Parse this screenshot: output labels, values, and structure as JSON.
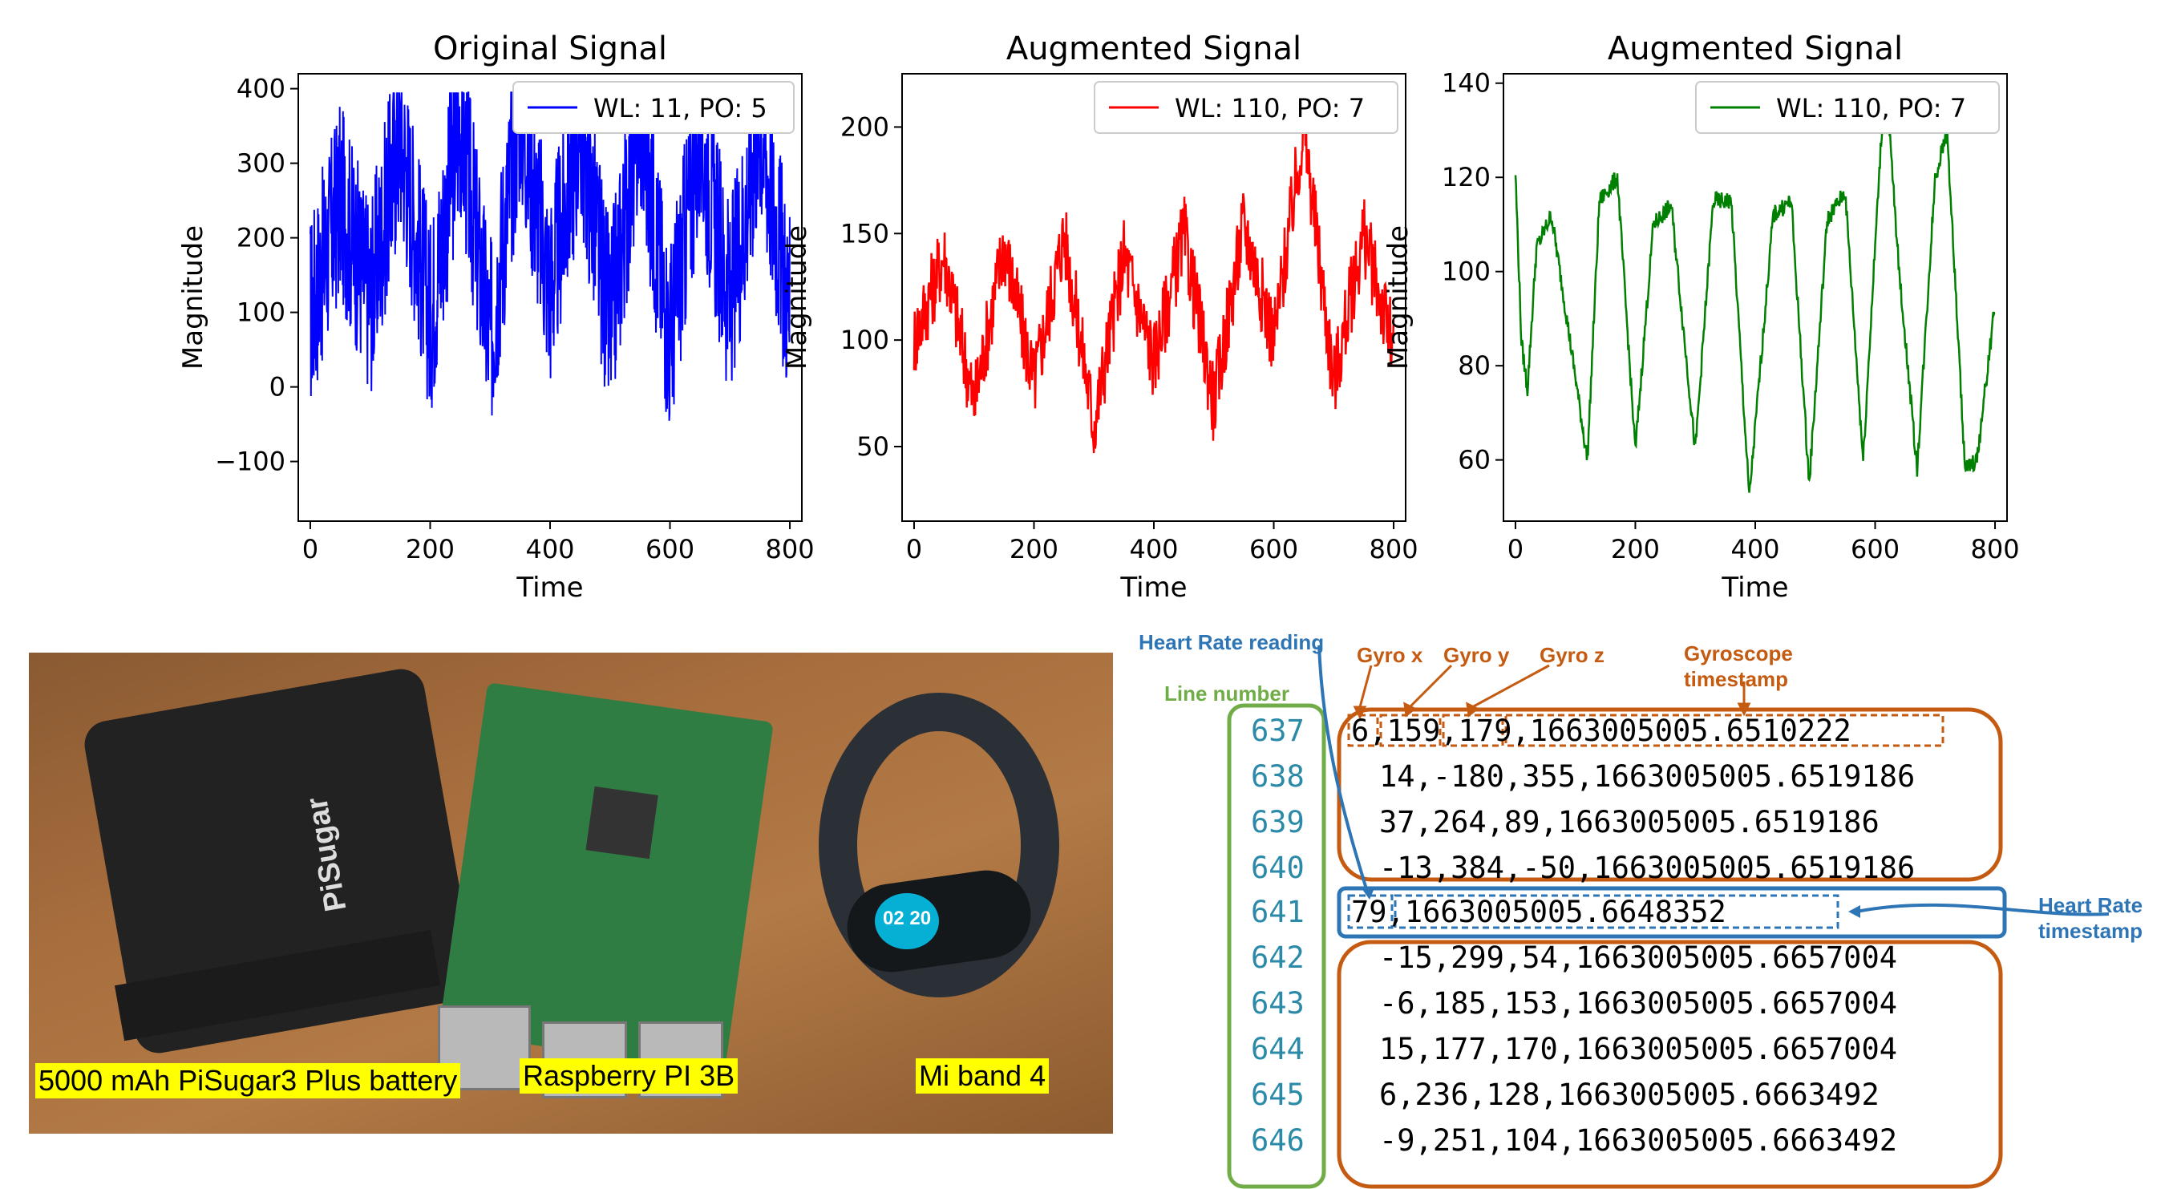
{
  "chart_data": [
    {
      "type": "line",
      "title": "Original Signal",
      "xlabel": "Time",
      "ylabel": "Magnitude",
      "xlim": [
        -20,
        820
      ],
      "ylim": [
        -180,
        420
      ],
      "xticks": [
        "0",
        "200",
        "400",
        "600",
        "800"
      ],
      "yticks": [
        "400",
        "300",
        "200",
        "100",
        "0",
        "−100"
      ],
      "legend_placement": "top-right",
      "series": [
        {
          "name": "WL: 11, PO: 5",
          "color": "#0000ff",
          "x": [
            0,
            50,
            100,
            150,
            200,
            250,
            300,
            350,
            400,
            450,
            500,
            550,
            600,
            650,
            700,
            750,
            800
          ],
          "values": [
            100,
            250,
            120,
            340,
            90,
            360,
            60,
            380,
            130,
            350,
            80,
            370,
            60,
            340,
            110,
            360,
            100
          ]
        }
      ]
    },
    {
      "type": "line",
      "title": "Augmented Signal",
      "xlabel": "Time",
      "ylabel": "Magnitude",
      "xlim": [
        -20,
        820
      ],
      "ylim": [
        15,
        225
      ],
      "xticks": [
        "0",
        "200",
        "400",
        "600",
        "800"
      ],
      "yticks": [
        "200",
        "150",
        "100",
        "50"
      ],
      "legend_placement": "top-right",
      "series": [
        {
          "name": "WL: 110, PO: 7",
          "color": "#ff0000",
          "x": [
            0,
            50,
            100,
            150,
            200,
            250,
            300,
            350,
            400,
            450,
            500,
            550,
            600,
            650,
            700,
            750,
            800
          ],
          "values": [
            100,
            140,
            70,
            145,
            80,
            150,
            60,
            140,
            90,
            150,
            70,
            155,
            100,
            200,
            80,
            150,
            95
          ]
        }
      ]
    },
    {
      "type": "line",
      "title": "Augmented Signal",
      "xlabel": "Time",
      "ylabel": "Magnitude",
      "xlim": [
        -20,
        820
      ],
      "ylim": [
        47,
        142
      ],
      "xticks": [
        "0",
        "200",
        "400",
        "600",
        "800"
      ],
      "yticks": [
        "140",
        "120",
        "100",
        "80",
        "60"
      ],
      "legend_placement": "top-right",
      "series": [
        {
          "name": "WL: 110, PO: 7",
          "color": "#008000",
          "x": [
            0,
            10,
            20,
            35,
            60,
            80,
            120,
            140,
            170,
            200,
            230,
            260,
            300,
            330,
            360,
            390,
            430,
            460,
            490,
            520,
            550,
            580,
            610,
            620,
            640,
            670,
            700,
            720,
            750,
            770,
            800
          ],
          "values": [
            121,
            85,
            75,
            105,
            112,
            95,
            60,
            115,
            120,
            62,
            110,
            114,
            62,
            115,
            115,
            52,
            112,
            115,
            55,
            111,
            117,
            60,
            128,
            137,
            100,
            58,
            120,
            130,
            58,
            60,
            93
          ]
        }
      ]
    }
  ],
  "photo": {
    "captions": {
      "battery": "5000 mAh PiSugar3 Plus battery",
      "rpi": "Raspberry PI 3B",
      "band": "Mi band 4"
    },
    "band_time": "02 20",
    "battery_brand": "PiSugar"
  },
  "data_panel": {
    "labels": {
      "heart_rate_reading": "Heart Rate reading",
      "line_number": "Line number",
      "gyro_x": "Gyro x",
      "gyro_y": "Gyro y",
      "gyro_z": "Gyro z",
      "gyro_ts_1": "Gyroscope",
      "gyro_ts_2": "timestamp",
      "hr_ts_1": "Heart Rate",
      "hr_ts_2": "timestamp"
    },
    "line_numbers": [
      "637",
      "638",
      "639",
      "640",
      "641",
      "642",
      "643",
      "644",
      "645",
      "646"
    ],
    "rows": [
      "6,159,179,1663005005.6510222",
      "14,-180,355,1663005005.6519186",
      "37,264,89,1663005005.6519186",
      "-13,384,-50,1663005005.6519186",
      "79,1663005005.6648352",
      "-15,299,54,1663005005.6657004",
      "-6,185,153,1663005005.6657004",
      "15,177,170,1663005005.6657004",
      "6,236,128,1663005005.6663492",
      "-9,251,104,1663005005.6663492"
    ]
  }
}
